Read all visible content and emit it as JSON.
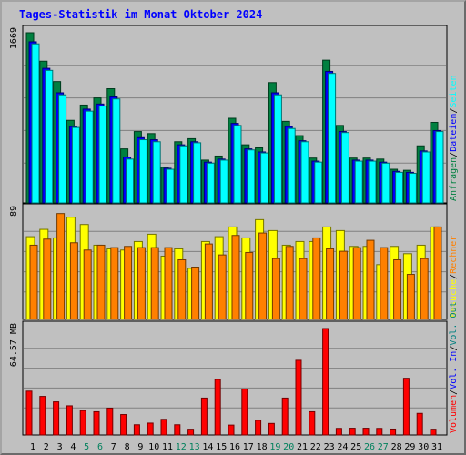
{
  "title": "Tages-Statistik im Monat Oktober 2024",
  "chart_data": [
    {
      "type": "bar",
      "panel": "top",
      "categories": [
        "1",
        "2",
        "3",
        "4",
        "5",
        "6",
        "7",
        "8",
        "9",
        "10",
        "11",
        "12",
        "13",
        "14",
        "15",
        "16",
        "17",
        "18",
        "19",
        "20",
        "21",
        "22",
        "23",
        "24",
        "25",
        "26",
        "27",
        "28",
        "29",
        "30",
        "31"
      ],
      "weekend": [
        false,
        false,
        false,
        false,
        true,
        true,
        false,
        false,
        false,
        false,
        false,
        true,
        true,
        false,
        false,
        false,
        false,
        false,
        true,
        true,
        false,
        false,
        false,
        false,
        false,
        true,
        true,
        false,
        false,
        false,
        false
      ],
      "max_label": "1669",
      "ylim": [
        0,
        1669
      ],
      "series": [
        {
          "name": "Anfragen",
          "color": "#008040",
          "values": [
            1669,
            1390,
            1190,
            810,
            960,
            1030,
            1120,
            530,
            700,
            680,
            350,
            600,
            630,
            420,
            460,
            830,
            570,
            540,
            1180,
            800,
            660,
            440,
            1400,
            760,
            440,
            440,
            430,
            330,
            320,
            560,
            790
          ]
        },
        {
          "name": "Dateien",
          "color": "#0000ff",
          "values": [
            1580,
            1320,
            1080,
            750,
            920,
            970,
            1040,
            450,
            640,
            620,
            340,
            570,
            600,
            400,
            430,
            780,
            530,
            500,
            1080,
            750,
            610,
            410,
            1290,
            700,
            420,
            420,
            400,
            310,
            300,
            510,
            710
          ]
        },
        {
          "name": "Seiten",
          "color": "#00ffff",
          "values": [
            1560,
            1300,
            1060,
            740,
            900,
            950,
            1020,
            430,
            620,
            600,
            330,
            560,
            590,
            390,
            420,
            760,
            520,
            490,
            1060,
            730,
            600,
            400,
            1270,
            690,
            410,
            410,
            390,
            300,
            290,
            500,
            700
          ]
        }
      ],
      "axis_label_parts": [
        {
          "text": "Anfragen",
          "color": "#008040"
        },
        {
          "text": "Dateien",
          "color": "#0000ff"
        },
        {
          "text": "Seiten",
          "color": "#00ffff"
        }
      ]
    },
    {
      "type": "bar",
      "panel": "middle",
      "categories": [
        "1",
        "2",
        "3",
        "4",
        "5",
        "6",
        "7",
        "8",
        "9",
        "10",
        "11",
        "12",
        "13",
        "14",
        "15",
        "16",
        "17",
        "18",
        "19",
        "20",
        "21",
        "22",
        "23",
        "24",
        "25",
        "26",
        "27",
        "28",
        "29",
        "30",
        "31"
      ],
      "max_label": "89",
      "ylim": [
        0,
        89
      ],
      "series": [
        {
          "name": "Besuche",
          "color": "#ffff00",
          "values": [
            68,
            74,
            67,
            84,
            78,
            61,
            58,
            57,
            64,
            70,
            52,
            58,
            42,
            64,
            68,
            76,
            67,
            82,
            73,
            61,
            64,
            64,
            76,
            73,
            60,
            60,
            45,
            60,
            54,
            61,
            76
          ]
        },
        {
          "name": "Rechner",
          "color": "#ff8000",
          "values": [
            61,
            66,
            87,
            63,
            57,
            61,
            59,
            60,
            59,
            59,
            59,
            49,
            43,
            62,
            53,
            69,
            55,
            71,
            50,
            60,
            50,
            67,
            58,
            56,
            59,
            65,
            59,
            49,
            37,
            50,
            76
          ]
        }
      ],
      "axis_label_parts": [
        {
          "text": "Besuche",
          "color": "#ffff00"
        },
        {
          "text": "Rechner",
          "color": "#ff8000"
        }
      ]
    },
    {
      "type": "bar",
      "panel": "bottom",
      "categories": [
        "1",
        "2",
        "3",
        "4",
        "5",
        "6",
        "7",
        "8",
        "9",
        "10",
        "11",
        "12",
        "13",
        "14",
        "15",
        "16",
        "17",
        "18",
        "19",
        "20",
        "21",
        "22",
        "23",
        "24",
        "25",
        "26",
        "27",
        "28",
        "29",
        "30",
        "31"
      ],
      "max_label": "64.57 MB",
      "ylim": [
        0,
        64.57
      ],
      "series": [
        {
          "name": "Volumen",
          "color": "#ff0000",
          "values": [
            26.6,
            23.4,
            20.1,
            17.7,
            14.8,
            14.1,
            16.3,
            12.4,
            6.2,
            7.2,
            9.5,
            6.2,
            3.5,
            22.4,
            33.7,
            6.0,
            27.9,
            8.9,
            7.0,
            22.4,
            45.3,
            14.1,
            64.57,
            4.0,
            4.1,
            4.1,
            4.0,
            3.6,
            34.4,
            13.1,
            3.5
          ]
        }
      ],
      "axis_label_parts": [
        {
          "text": "Volumen",
          "color": "#ff0000"
        },
        {
          "text": "Vol. In",
          "color": "#0000ff"
        },
        {
          "text": "Vol. Out",
          "color": "#008080"
        }
      ]
    }
  ],
  "colors": {
    "background": "#c0c0c0",
    "grid": "#808080",
    "border": "#000000",
    "weekday_label": "#000000",
    "weekend_label": "#00805c",
    "title": "#0000ff",
    "separator": "#000000"
  },
  "separator": "/"
}
